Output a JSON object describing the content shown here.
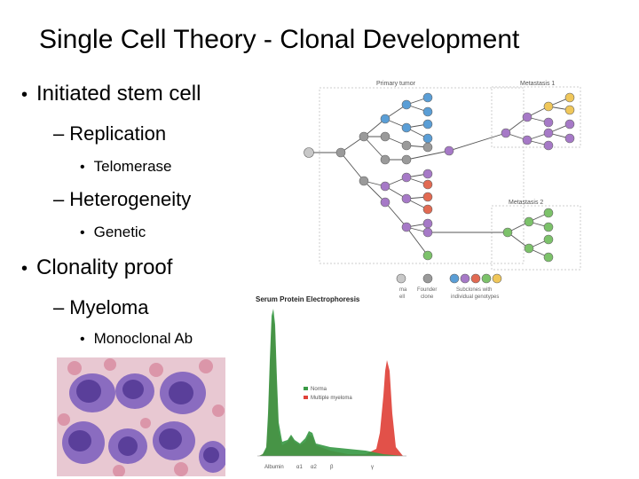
{
  "slide": {
    "title": "Single Cell Theory - Clonal Development",
    "bullets": {
      "initiated": "Initiated stem cell",
      "replication": "Replication",
      "telomerase": "Telomerase",
      "heterogeneity": "Heterogeneity",
      "genetic": "Genetic",
      "clonality": "Clonality proof",
      "myeloma": "Myeloma",
      "monoclonal": "Monoclonal Ab"
    }
  },
  "clonal_figure": {
    "primary_tumor": "Primary tumor",
    "metastasis1": "Metastasis 1",
    "metastasis2": "Metastasis 2",
    "legend_normal": "ma",
    "legend_normal2": "ell",
    "legend_founder": "Founder",
    "legend_founder2": "clone",
    "legend_subclones": "Subclones with",
    "legend_subclones2": "individual genotypes",
    "colors": {
      "grey": "#b4b4b4",
      "blue": "#5a9ed6",
      "purple": "#a679c7",
      "red": "#e26a52",
      "green": "#7cc26a",
      "yellow": "#f0c75a",
      "grey_dark": "#9a9a9a"
    }
  },
  "electrophoresis": {
    "title": "Serum Protein Electrophoresis",
    "legend_normal": "Norma",
    "legend_myeloma": "Multiple myeloma",
    "axis_labels": [
      "Albumin",
      "α1",
      "α2",
      "β",
      "γ"
    ],
    "colors": {
      "normal": "#3a9a46",
      "myeloma": "#e0423a"
    }
  },
  "micrograph": {
    "colors": {
      "background": "#e8c8d2",
      "cell": "#8a6cc0",
      "nucleus": "#5a3f9a",
      "rbc": "#d88aa0"
    }
  }
}
